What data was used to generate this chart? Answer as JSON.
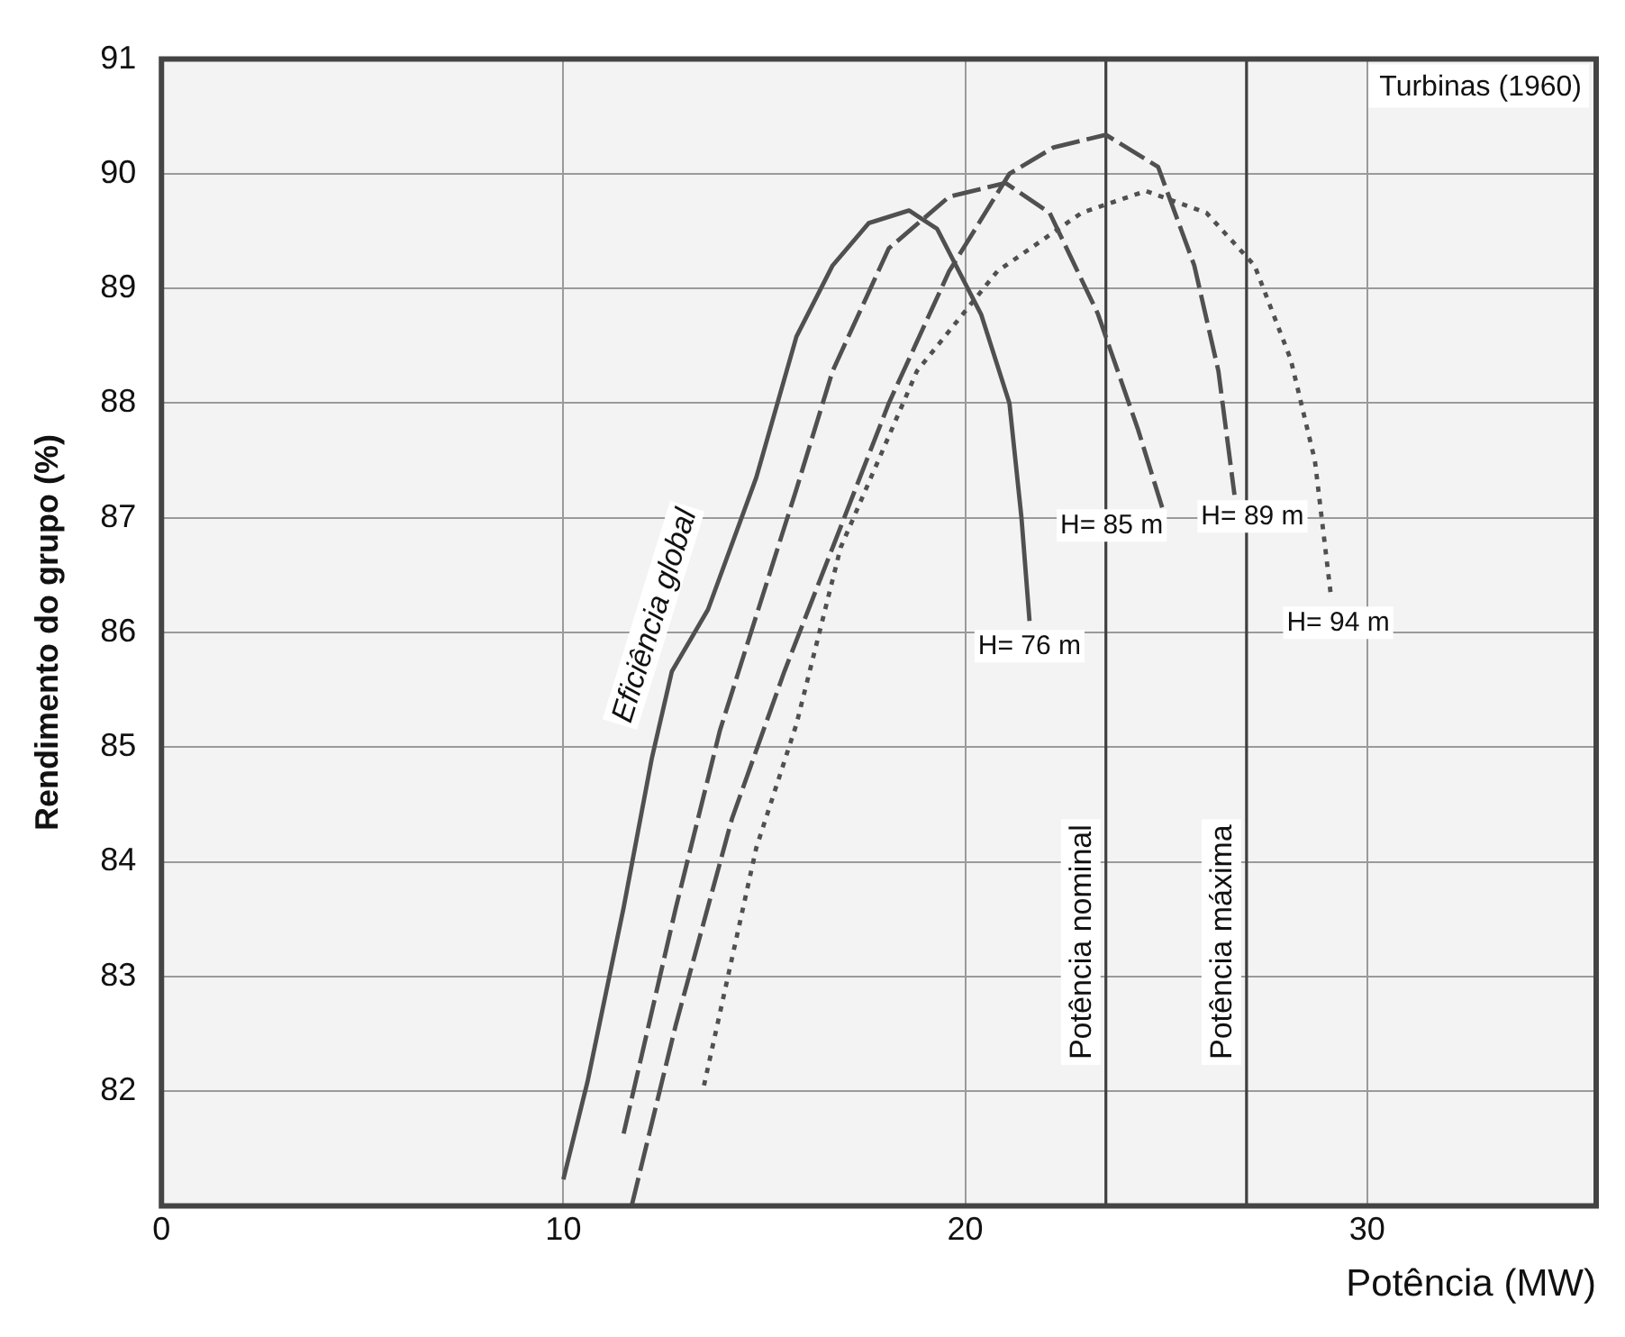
{
  "chart_data": {
    "type": "line",
    "title": "Turbinas (1960)",
    "xlabel": "Potência (MW)",
    "ylabel": "Rendimento do grupo (%)",
    "xlim": [
      0,
      35.7
    ],
    "xticks": [
      0,
      10,
      20,
      30
    ],
    "ylim": [
      81,
      91
    ],
    "yticks": [
      82,
      83,
      84,
      85,
      86,
      87,
      88,
      89,
      90,
      91
    ],
    "grid": true,
    "legend": false,
    "marker": "none",
    "series": [
      {
        "name": "H= 76 m",
        "color": "#505050",
        "line_style": "solid",
        "x": [
          10.0,
          10.6,
          11.5,
          12.2,
          12.7,
          13.6,
          14.8,
          15.8,
          16.7,
          17.6,
          18.6,
          19.3,
          20.4,
          21.1,
          21.4,
          21.6
        ],
        "values": [
          81.23,
          82.08,
          83.6,
          84.9,
          85.66,
          86.2,
          87.35,
          88.58,
          89.2,
          89.57,
          89.68,
          89.52,
          88.77,
          88.0,
          87.0,
          86.1
        ]
      },
      {
        "name": "H= 85 m",
        "color": "#505050",
        "line_style": "dashed",
        "x": [
          11.5,
          12.8,
          13.9,
          15.8,
          16.7,
          18.1,
          19.6,
          21.0,
          22.1,
          23.3,
          24.3,
          24.9
        ],
        "values": [
          81.63,
          83.6,
          85.15,
          87.25,
          88.28,
          89.35,
          89.8,
          89.92,
          89.66,
          88.78,
          87.77,
          87.09
        ]
      },
      {
        "name": "H= 89 m",
        "color": "#505050",
        "line_style": "dashed",
        "x": [
          11.7,
          12.8,
          14.2,
          15.5,
          16.7,
          18.1,
          19.6,
          21.1,
          22.2,
          23.5,
          24.8,
          25.7,
          26.3,
          26.7
        ],
        "values": [
          81.0,
          82.58,
          84.38,
          85.66,
          86.74,
          88.0,
          89.15,
          90.0,
          90.23,
          90.34,
          90.06,
          89.2,
          88.28,
          87.2
        ]
      },
      {
        "name": "H= 94 m",
        "color": "#505050",
        "line_style": "dotted",
        "x": [
          13.5,
          14.8,
          15.8,
          16.9,
          18.8,
          20.8,
          22.9,
          24.5,
          26.0,
          27.2,
          28.1,
          28.7,
          29.1
        ],
        "values": [
          82.05,
          84.12,
          85.2,
          86.74,
          88.28,
          89.15,
          89.66,
          89.85,
          89.66,
          89.2,
          88.38,
          87.5,
          86.32
        ]
      }
    ],
    "ref_lines": [
      {
        "axis": "x",
        "value": 23.5,
        "label": "Potência nominal",
        "color": "#404040"
      },
      {
        "axis": "x",
        "value": 27.0,
        "label": "Potência máxima",
        "color": "#404040"
      }
    ],
    "annotations": [
      "Eficiência global"
    ]
  }
}
